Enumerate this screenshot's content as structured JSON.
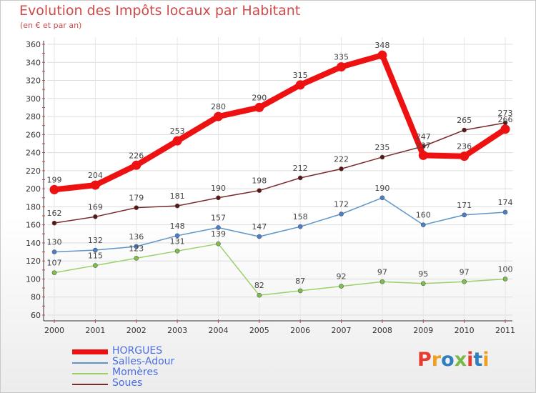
{
  "title": "Evolution des Impôts locaux par Habitant",
  "subtitle": "(en € et par an)",
  "logo": [
    "P",
    "r",
    "o",
    "x",
    "i",
    "t",
    "i"
  ],
  "logo_colors": [
    "#e63b2e",
    "#f0a020",
    "#2f7fc0",
    "#7ab84a",
    "#e63b2e",
    "#2f7fc0",
    "#f0a020"
  ],
  "chart_data": {
    "type": "line",
    "x": [
      "2000",
      "2001",
      "2002",
      "2003",
      "2004",
      "2005",
      "2006",
      "2007",
      "2008",
      "2009",
      "2010",
      "2011"
    ],
    "ylim": [
      60,
      360
    ],
    "yticks": [
      60,
      80,
      100,
      120,
      140,
      160,
      180,
      200,
      220,
      240,
      260,
      280,
      300,
      320,
      340,
      360
    ],
    "grid": true,
    "legend_position": "bottom-left",
    "series": [
      {
        "name": "Soues",
        "color": "#7a2a2a",
        "marker": "#5a1414",
        "values": [
          162,
          169,
          179,
          181,
          190,
          198,
          212,
          222,
          235,
          247,
          265,
          273
        ]
      },
      {
        "name": "Salles-Adour",
        "color": "#5e96c8",
        "marker": "#4a7fcf",
        "values": [
          130,
          132,
          136,
          148,
          157,
          147,
          158,
          172,
          190,
          160,
          171,
          174
        ]
      },
      {
        "name": "Momères",
        "color": "#9bd06a",
        "marker": "#7cc24a",
        "values": [
          107,
          115,
          123,
          131,
          139,
          82,
          87,
          92,
          97,
          95,
          97,
          100
        ]
      },
      {
        "name": "HORGUES",
        "color": "#ee1111",
        "marker": "#ee1111",
        "values": [
          199,
          204,
          226,
          253,
          280,
          290,
          315,
          335,
          348,
          237,
          236,
          266
        ]
      }
    ],
    "legend": [
      {
        "name": "HORGUES",
        "color": "#ee1111",
        "text_color": "#4a6ee0",
        "thick": true
      },
      {
        "name": "Salles-Adour",
        "color": "#5e96c8",
        "text_color": "#4a6ee0",
        "thick": false
      },
      {
        "name": "Momères",
        "color": "#9bd06a",
        "text_color": "#4a6ee0",
        "thick": false
      },
      {
        "name": "Soues",
        "color": "#7a2a2a",
        "text_color": "#4a6ee0",
        "thick": false
      }
    ]
  }
}
